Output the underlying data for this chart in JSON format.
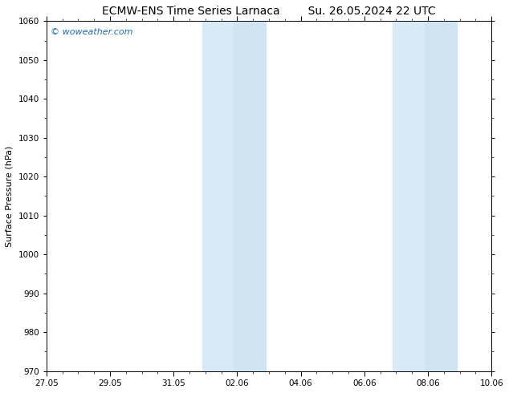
{
  "title_left": "ECMW-ENS Time Series Larnaca",
  "title_right": "Su. 26.05.2024 22 UTC",
  "ylabel": "Surface Pressure (hPa)",
  "background_color": "#ffffff",
  "plot_bg_color": "#ffffff",
  "ylim": [
    970,
    1060
  ],
  "yticks": [
    970,
    980,
    990,
    1000,
    1010,
    1020,
    1030,
    1040,
    1050,
    1060
  ],
  "x_min": 0,
  "x_max": 14,
  "xtick_labels": [
    "27.05",
    "29.05",
    "31.05",
    "02.06",
    "04.06",
    "06.06",
    "08.06",
    "10.06"
  ],
  "xtick_positions": [
    0,
    2,
    4,
    6,
    8,
    10,
    12,
    14
  ],
  "shaded_bands": [
    {
      "x_start": 5.0,
      "x_end": 5.5
    },
    {
      "x_start": 5.5,
      "x_end": 6.5
    },
    {
      "x_start": 11.0,
      "x_end": 11.5
    },
    {
      "x_start": 11.5,
      "x_end": 12.5
    }
  ],
  "shade_color_light": "#daeaf7",
  "shade_color_dark": "#c8dff0",
  "watermark_text": "© woweather.com",
  "watermark_color": "#1a6bbf",
  "title_fontsize": 10,
  "axis_label_fontsize": 8,
  "tick_fontsize": 7.5,
  "watermark_fontsize": 8
}
